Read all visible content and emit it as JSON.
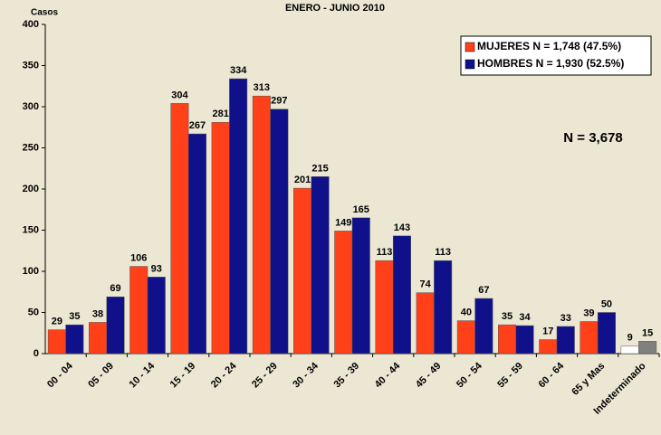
{
  "chart_data": {
    "type": "bar",
    "title": "ENERO - JUNIO 2010",
    "ylabel": "Casos",
    "annotation": "N = 3,678",
    "categories": [
      "00 - 04",
      "05 - 09",
      "10 - 14",
      "15 - 19",
      "20 - 24",
      "25 - 29",
      "30 - 34",
      "35 - 39",
      "40 - 44",
      "45 - 49",
      "50 - 54",
      "55 - 59",
      "60 - 64",
      "65 y Mas",
      "Indeterminado"
    ],
    "series": [
      {
        "name": "MUJERES N = 1,748 (47.5%)",
        "color": "#ff4019",
        "colors": [
          "#ff4019",
          "#ff4019",
          "#ff4019",
          "#ff4019",
          "#ff4019",
          "#ff4019",
          "#ff4019",
          "#ff4019",
          "#ff4019",
          "#ff4019",
          "#ff4019",
          "#ff4019",
          "#ff4019",
          "#ff4019",
          "#ffffff"
        ],
        "values": [
          29,
          38,
          106,
          304,
          281,
          313,
          201,
          149,
          113,
          74,
          40,
          35,
          17,
          39,
          9
        ]
      },
      {
        "name": "HOMBRES N = 1,930 (52.5%)",
        "color": "#10108a",
        "colors": [
          "#10108a",
          "#10108a",
          "#10108a",
          "#10108a",
          "#10108a",
          "#10108a",
          "#10108a",
          "#10108a",
          "#10108a",
          "#10108a",
          "#10108a",
          "#10108a",
          "#10108a",
          "#10108a",
          "#808080"
        ],
        "values": [
          35,
          69,
          93,
          267,
          334,
          297,
          215,
          165,
          143,
          113,
          67,
          34,
          33,
          50,
          15
        ]
      }
    ],
    "ylim": [
      0,
      400
    ],
    "yticks": [
      0,
      50,
      100,
      150,
      200,
      250,
      300,
      350,
      400
    ],
    "grid": false,
    "legend": "upper right"
  }
}
